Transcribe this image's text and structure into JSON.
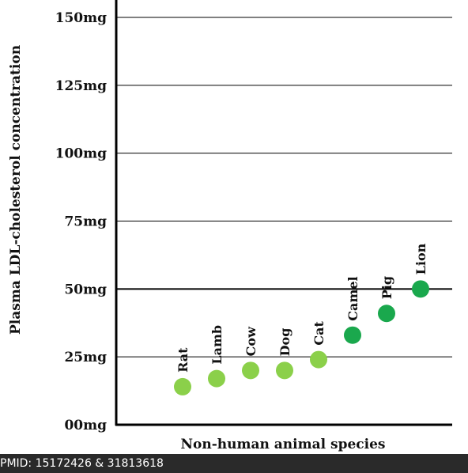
{
  "chart_data": {
    "type": "scatter",
    "ylabel": "Plasma LDL-cholesterol concentration",
    "xlabel": "Non-human animal species",
    "ylim": [
      0,
      150
    ],
    "yticks": [
      {
        "value": 0,
        "label": "00mg"
      },
      {
        "value": 25,
        "label": "25mg"
      },
      {
        "value": 50,
        "label": "50mg"
      },
      {
        "value": 75,
        "label": "75mg"
      },
      {
        "value": 100,
        "label": "100mg"
      },
      {
        "value": 125,
        "label": "125mg"
      },
      {
        "value": 150,
        "label": "150mg"
      }
    ],
    "grid": true,
    "categories": [
      "Rat",
      "Lamb",
      "Cow",
      "Dog",
      "Cat",
      "Camel",
      "Pig",
      "Lion"
    ],
    "values": [
      14,
      17,
      20,
      20,
      24,
      33,
      41,
      50
    ],
    "colors": [
      "#8bd04a",
      "#8bd04a",
      "#8bd04a",
      "#8bd04a",
      "#8bd04a",
      "#1aa84d",
      "#1aa84d",
      "#1aa84d"
    ]
  },
  "footer": {
    "text": "PMID: 15172426 & 31813618"
  }
}
